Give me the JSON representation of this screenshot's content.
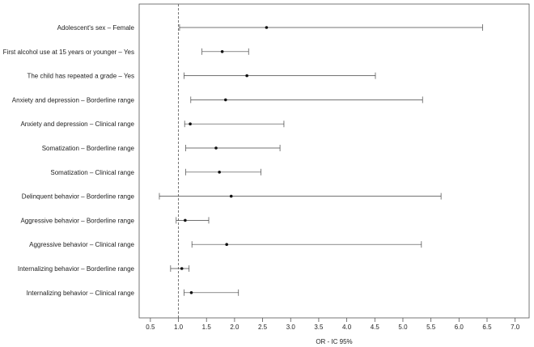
{
  "chart_data": {
    "type": "forest",
    "title": "",
    "xlabel": "OR - IC 95%",
    "ylabel": "",
    "xlim": [
      0.3,
      7.25
    ],
    "xticks": [
      "0.5",
      "1.0",
      "1.5",
      "2.0",
      "2.5",
      "3.0",
      "3.5",
      "4.0",
      "4.5",
      "5.0",
      "5.5",
      "6.0",
      "6.5",
      "7.0"
    ],
    "reference_line": 1.0,
    "grid": false,
    "rows": [
      {
        "label": "Adolescent's sex – Female",
        "or": 2.57,
        "lo": 1.02,
        "hi": 6.42
      },
      {
        "label": "First alcohol use at 15 years or younger – Yes",
        "or": 1.78,
        "lo": 1.42,
        "hi": 2.25
      },
      {
        "label": "The child has repeated a grade – Yes",
        "or": 2.22,
        "lo": 1.1,
        "hi": 4.51
      },
      {
        "label": "Anxiety and depression – Borderline range",
        "or": 1.84,
        "lo": 1.22,
        "hi": 5.35
      },
      {
        "label": "Anxiety and depression – Clinical range",
        "or": 1.21,
        "lo": 1.11,
        "hi": 2.88
      },
      {
        "label": "Somatization – Borderline range",
        "or": 1.67,
        "lo": 1.13,
        "hi": 2.81
      },
      {
        "label": "Somatization – Clinical range",
        "or": 1.73,
        "lo": 1.13,
        "hi": 2.47
      },
      {
        "label": "Delinquent behavior – Borderline range",
        "or": 1.94,
        "lo": 0.66,
        "hi": 5.68
      },
      {
        "label": "Aggressive behavior – Borderline range",
        "or": 1.12,
        "lo": 0.96,
        "hi": 1.54
      },
      {
        "label": "Aggressive behavior – Clinical range",
        "or": 1.86,
        "lo": 1.24,
        "hi": 5.33
      },
      {
        "label": "Internalizing behavior – Borderline range",
        "or": 1.06,
        "lo": 0.86,
        "hi": 1.19
      },
      {
        "label": "Internalizing behavior – Clinical range",
        "or": 1.23,
        "lo": 1.1,
        "hi": 2.07
      }
    ]
  }
}
